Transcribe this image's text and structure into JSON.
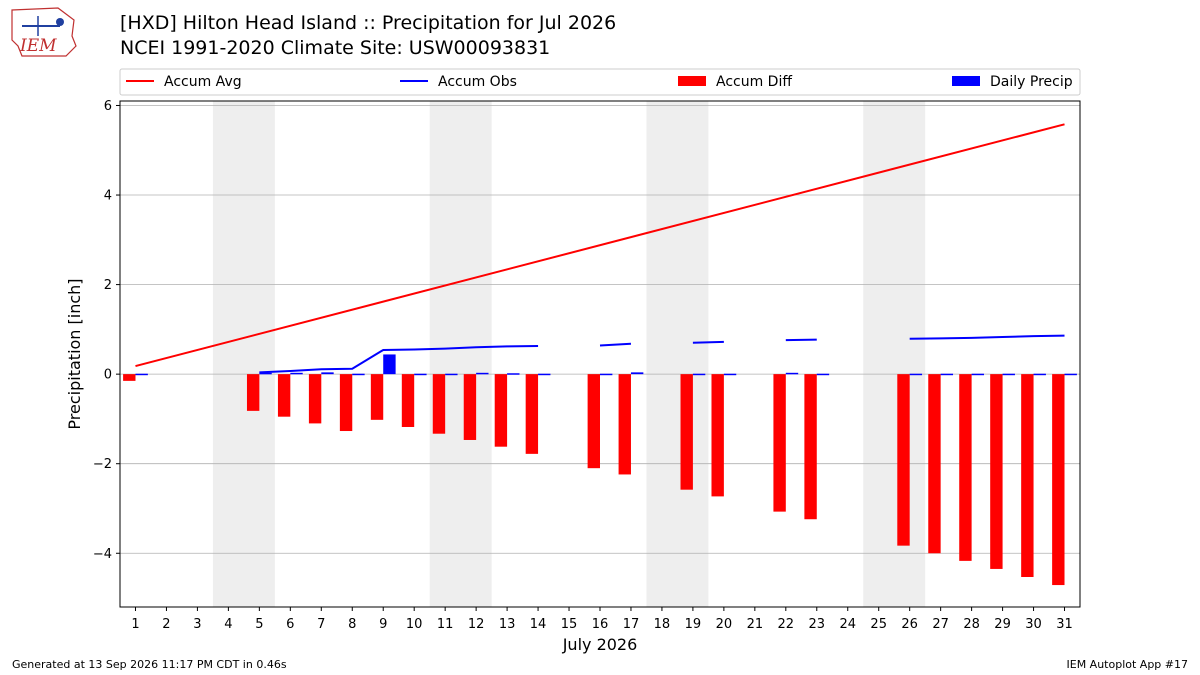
{
  "header": {
    "title_line1": "[HXD] Hilton Head Island :: Precipitation for Jul 2026",
    "title_line2": "NCEI 1991-2020 Climate Site: USW00093831",
    "logo_text": "IEM"
  },
  "footer": {
    "generated": "Generated at 13 Sep 2026 11:17 PM CDT in 0.46s",
    "app": "IEM Autoplot App #17"
  },
  "colors": {
    "accum_avg": "#ff0000",
    "accum_obs": "#0000ff",
    "accum_diff": "#ff0000",
    "daily_precip": "#0000ff",
    "weekend_band": "#eeeeee",
    "grid": "#b0b0b0"
  },
  "chart_data": {
    "type": "bar",
    "xlabel": "July 2026",
    "ylabel": "Precipitation [inch]",
    "ylim": [
      -5.2,
      6.1
    ],
    "yticks": [
      -4,
      -2,
      0,
      2,
      4,
      6
    ],
    "ytick_labels": [
      "−4",
      "−2",
      "0",
      "2",
      "4",
      "6"
    ],
    "x": [
      1,
      2,
      3,
      4,
      5,
      6,
      7,
      8,
      9,
      10,
      11,
      12,
      13,
      14,
      15,
      16,
      17,
      18,
      19,
      20,
      21,
      22,
      23,
      24,
      25,
      26,
      27,
      28,
      29,
      30,
      31
    ],
    "xlim": [
      0.5,
      31.5
    ],
    "grid": "horizontal",
    "legend_position": "top",
    "weekend_bands": [
      [
        4,
        5
      ],
      [
        11,
        12
      ],
      [
        18,
        19
      ],
      [
        25,
        26
      ]
    ],
    "legend": [
      "Accum Avg",
      "Accum Obs",
      "Accum Diff",
      "Daily Precip"
    ],
    "series": [
      {
        "name": "Accum Avg",
        "type": "line",
        "x": [
          1,
          31
        ],
        "values": [
          0.18,
          5.58
        ]
      },
      {
        "name": "Accum Obs",
        "type": "line",
        "segments": [
          {
            "x": [
              5,
              6,
              7,
              8,
              9,
              10,
              11,
              12,
              13,
              14
            ],
            "values": [
              0.04,
              0.07,
              0.11,
              0.12,
              0.54,
              0.55,
              0.57,
              0.6,
              0.62,
              0.63
            ]
          },
          {
            "x": [
              16,
              17
            ],
            "values": [
              0.64,
              0.68
            ]
          },
          {
            "x": [
              19,
              20
            ],
            "values": [
              0.7,
              0.72
            ]
          },
          {
            "x": [
              22,
              23
            ],
            "values": [
              0.76,
              0.77
            ]
          },
          {
            "x": [
              26,
              27,
              28,
              29,
              30,
              31
            ],
            "values": [
              0.79,
              0.8,
              0.81,
              0.83,
              0.85,
              0.86
            ]
          }
        ]
      },
      {
        "name": "Accum Diff",
        "type": "bar",
        "x": [
          1,
          5,
          6,
          7,
          8,
          9,
          10,
          11,
          12,
          13,
          14,
          16,
          17,
          19,
          20,
          22,
          23,
          26,
          27,
          28,
          29,
          30,
          31
        ],
        "values": [
          -0.15,
          -0.82,
          -0.95,
          -1.1,
          -1.27,
          -1.02,
          -1.18,
          -1.33,
          -1.47,
          -1.62,
          -1.78,
          -2.1,
          -2.24,
          -2.58,
          -2.73,
          -3.07,
          -3.24,
          -3.83,
          -4.0,
          -4.17,
          -4.35,
          -4.53,
          -4.71
        ]
      },
      {
        "name": "Daily Precip",
        "type": "bar",
        "x": [
          1,
          5,
          6,
          7,
          8,
          9,
          10,
          11,
          12,
          13,
          14,
          16,
          17,
          19,
          20,
          22,
          23,
          26,
          27,
          28,
          29,
          30,
          31
        ],
        "values": [
          0.01,
          0.03,
          0.03,
          0.04,
          0.01,
          0.44,
          0.01,
          0.01,
          0.03,
          0.02,
          0.01,
          0.01,
          0.04,
          0.01,
          0.01,
          0.03,
          0.01,
          0.01,
          0.01,
          0.01,
          0.01,
          0.01,
          0.01
        ]
      }
    ]
  }
}
